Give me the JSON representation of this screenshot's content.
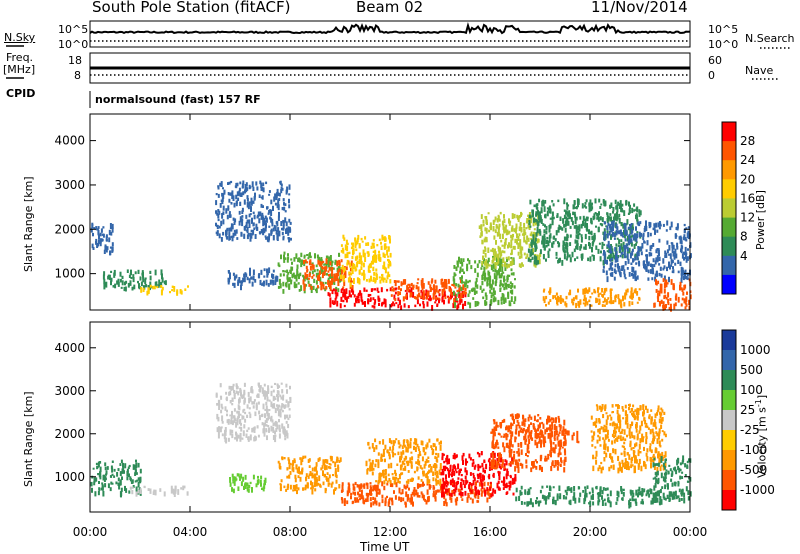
{
  "header": {
    "station": "South Pole Station (fitACF)",
    "beam": "Beam 02",
    "date": "11/Nov/2014"
  },
  "side_labels": {
    "nsky": "N.Sky",
    "freq": "Freq.",
    "freq_unit": "[MHz]",
    "cpid": "CPID",
    "nsearch": "N.Search",
    "nave": "Nave"
  },
  "cpid_text": "normalsound (fast) 157 RF",
  "top_panels": {
    "noise_left_ticks": [
      "10^5",
      "10^0"
    ],
    "noise_right_ticks": [
      "10^5",
      "10^0"
    ],
    "freq_left_ticks": [
      "18",
      "8"
    ],
    "freq_right_ticks": [
      "60",
      "0"
    ]
  },
  "chart_data": [
    {
      "type": "heatmap",
      "name": "power",
      "ylabel": "Slant Range [km]",
      "ylim": [
        180,
        4600
      ],
      "yticks": [
        1000,
        2000,
        3000,
        4000
      ],
      "xlim": [
        0,
        24
      ],
      "colorbar": {
        "label": "Power [dB]",
        "ticks": [
          "28",
          "24",
          "20",
          "16",
          "12",
          "8",
          "4"
        ],
        "colors": [
          "#ff0000",
          "#ff5500",
          "#ff9900",
          "#ffcc00",
          "#bbcc33",
          "#55aa33",
          "#2e8b57",
          "#3366aa",
          "#0000ff"
        ]
      },
      "regions": [
        {
          "t0": 0.0,
          "t1": 1.0,
          "r0": 1500,
          "r1": 2150,
          "color": "#3366aa"
        },
        {
          "t0": 0.5,
          "t1": 3.0,
          "r0": 700,
          "r1": 1100,
          "color": "#2e8b57"
        },
        {
          "t0": 2.0,
          "t1": 4.0,
          "r0": 600,
          "r1": 750,
          "color": "#ffcc00"
        },
        {
          "t0": 5.0,
          "t1": 8.0,
          "r0": 1800,
          "r1": 3100,
          "color": "#3366aa"
        },
        {
          "t0": 5.5,
          "t1": 7.5,
          "r0": 750,
          "r1": 1150,
          "color": "#3366aa"
        },
        {
          "t0": 7.5,
          "t1": 10.0,
          "r0": 650,
          "r1": 1500,
          "color": "#55aa33"
        },
        {
          "t0": 8.5,
          "t1": 10.5,
          "r0": 700,
          "r1": 1350,
          "color": "#ff5500"
        },
        {
          "t0": 9.5,
          "t1": 15.0,
          "r0": 280,
          "r1": 700,
          "color": "#ff0000"
        },
        {
          "t0": 10.0,
          "t1": 12.0,
          "r0": 800,
          "r1": 1900,
          "color": "#ffcc00"
        },
        {
          "t0": 12.0,
          "t1": 15.0,
          "r0": 450,
          "r1": 900,
          "color": "#ff5500"
        },
        {
          "t0": 14.5,
          "t1": 17.0,
          "r0": 350,
          "r1": 1400,
          "color": "#55aa33"
        },
        {
          "t0": 15.5,
          "t1": 18.0,
          "r0": 1200,
          "r1": 2400,
          "color": "#bbcc33"
        },
        {
          "t0": 17.5,
          "t1": 22.0,
          "r0": 1300,
          "r1": 2700,
          "color": "#2e8b57"
        },
        {
          "t0": 18.0,
          "t1": 22.0,
          "r0": 300,
          "r1": 700,
          "color": "#ff9900"
        },
        {
          "t0": 20.5,
          "t1": 24.0,
          "r0": 900,
          "r1": 2200,
          "color": "#3366aa"
        },
        {
          "t0": 22.5,
          "t1": 24.0,
          "r0": 250,
          "r1": 900,
          "color": "#ff5500"
        }
      ]
    },
    {
      "type": "heatmap",
      "name": "velocity",
      "ylabel": "Slant Range [km]",
      "xlabel": "Time UT",
      "ylim": [
        180,
        4600
      ],
      "yticks": [
        1000,
        2000,
        3000,
        4000
      ],
      "xlim": [
        0,
        24
      ],
      "xticks": [
        "00:00",
        "04:00",
        "08:00",
        "12:00",
        "16:00",
        "20:00",
        "00:00"
      ],
      "colorbar": {
        "label": "Velocity [m s^-1]",
        "ticks": [
          "1000",
          "500",
          "100",
          "25",
          "-25",
          "-100",
          "-500",
          "-1000"
        ],
        "colors": [
          "#1a3a9a",
          "#3366aa",
          "#2e8b57",
          "#66cc33",
          "#c8c8c8",
          "#ffcc00",
          "#ff9900",
          "#ff5500",
          "#ff0000"
        ]
      },
      "regions": [
        {
          "t0": 0.0,
          "t1": 2.0,
          "r0": 650,
          "r1": 1400,
          "color": "#2e8b57"
        },
        {
          "t0": 1.5,
          "t1": 4.0,
          "r0": 650,
          "r1": 800,
          "color": "#c8c8c8"
        },
        {
          "t0": 5.0,
          "t1": 8.0,
          "r0": 1900,
          "r1": 3200,
          "color": "#c8c8c8"
        },
        {
          "t0": 5.5,
          "t1": 7.0,
          "r0": 700,
          "r1": 1100,
          "color": "#66cc33"
        },
        {
          "t0": 7.5,
          "t1": 10.0,
          "r0": 700,
          "r1": 1500,
          "color": "#ff9900"
        },
        {
          "t0": 10.0,
          "t1": 16.0,
          "r0": 400,
          "r1": 900,
          "color": "#ff5500"
        },
        {
          "t0": 11.0,
          "t1": 14.0,
          "r0": 900,
          "r1": 1900,
          "color": "#ff9900"
        },
        {
          "t0": 14.0,
          "t1": 17.0,
          "r0": 600,
          "r1": 1600,
          "color": "#ff0000"
        },
        {
          "t0": 16.0,
          "t1": 19.0,
          "r0": 1200,
          "r1": 2500,
          "color": "#ff5500"
        },
        {
          "t0": 17.5,
          "t1": 19.5,
          "r0": 1800,
          "r1": 2150,
          "color": "#ff5500"
        },
        {
          "t0": 17.0,
          "t1": 23.0,
          "r0": 400,
          "r1": 800,
          "color": "#2e8b57"
        },
        {
          "t0": 20.0,
          "t1": 23.0,
          "r0": 1200,
          "r1": 2700,
          "color": "#ff9900"
        },
        {
          "t0": 22.5,
          "t1": 24.0,
          "r0": 500,
          "r1": 1500,
          "color": "#2e8b57"
        }
      ]
    }
  ]
}
